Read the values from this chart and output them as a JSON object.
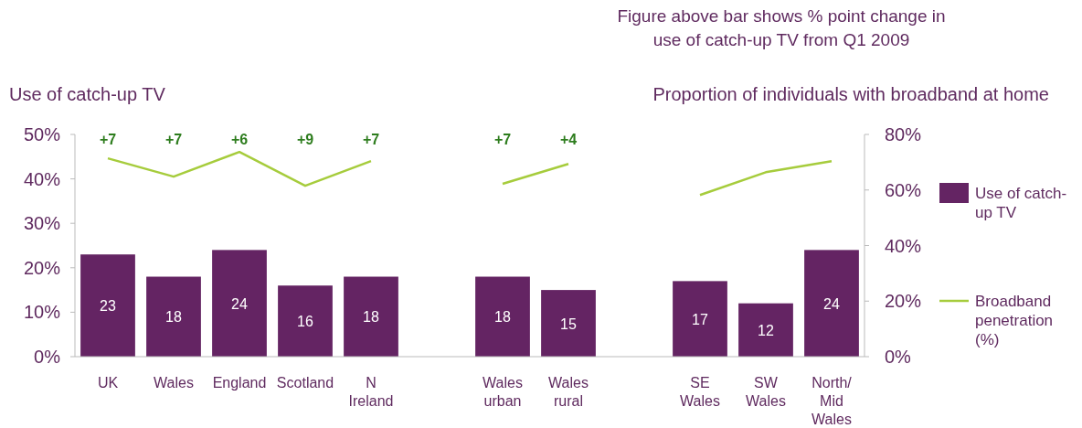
{
  "chart_data": {
    "type": "bar",
    "annotations": [
      "Figure above bar shows % point change in use of catch-up TV from Q1 2009",
      "+7",
      "+7",
      "+6",
      "+9",
      "+7",
      "+7",
      "+4"
    ],
    "ylabel": "Use of catch-up TV",
    "y2label": "Proportion of individuals with broadband at home",
    "categories": [
      "UK",
      "Wales",
      "England",
      "Scotland",
      "N Ireland",
      null,
      "Wales urban",
      "Wales rural",
      null,
      "SE Wales",
      "SW Wales",
      "North/Mid Wales"
    ],
    "series": [
      {
        "name": "Use of catch-up TV",
        "color": "#642463",
        "values": [
          23,
          18,
          24,
          16,
          18,
          null,
          18,
          15,
          null,
          17,
          12,
          24
        ],
        "value_labels": [
          "23",
          "18",
          "24",
          "16",
          "18",
          null,
          "18",
          "15",
          null,
          "17",
          "12",
          "24"
        ]
      },
      {
        "name": "Broadband penetration (%)",
        "type": "line",
        "axis": "y2",
        "color": "#a6cc3c",
        "values": [
          71.4,
          64.8,
          73.7,
          61.5,
          70.4,
          null,
          62.2,
          69.4,
          null,
          58.2,
          66.4,
          70.4
        ]
      }
    ],
    "ylim": [
      0,
      50
    ],
    "yticks": [
      {
        "value": 0,
        "label": "0%"
      },
      {
        "value": 10,
        "label": "10%"
      },
      {
        "value": 20,
        "label": "20%"
      },
      {
        "value": 30,
        "label": "30%"
      },
      {
        "value": 40,
        "label": "40%"
      },
      {
        "value": 50,
        "label": "50%"
      }
    ],
    "y2lim": [
      0,
      80
    ],
    "y2ticks": [
      {
        "value": 0,
        "label": "0%"
      },
      {
        "value": 20,
        "label": "20%"
      },
      {
        "value": 40,
        "label": "40%"
      },
      {
        "value": 60,
        "label": "60%"
      },
      {
        "value": 80,
        "label": "80%"
      }
    ],
    "grid": false,
    "legend": "right",
    "marker": "none",
    "line_style": "solid"
  }
}
